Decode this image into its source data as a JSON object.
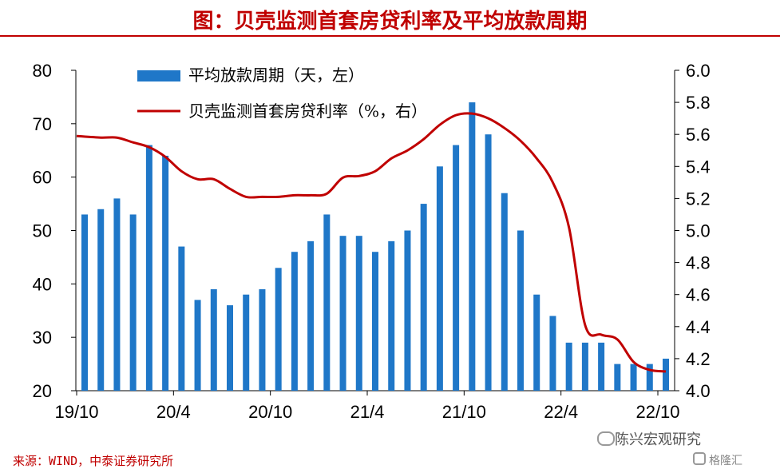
{
  "title": "图：贝壳监测首套房贷利率及平均放款周期",
  "source": "来源：WIND，中泰证券研究所",
  "watermark": "陈兴宏观研究",
  "watermark_logo": "格隆汇",
  "colors": {
    "bar": "#1f77c8",
    "line": "#c00000",
    "title": "#c00000",
    "axis": "#000000"
  },
  "chart_data": {
    "type": "bar",
    "x_tick_labels": [
      "19/10",
      "20/4",
      "20/10",
      "21/4",
      "21/10",
      "22/4",
      "22/10"
    ],
    "yaxis_left": {
      "min": 20,
      "max": 80,
      "ticks": [
        "80",
        "70",
        "60",
        "50",
        "40",
        "30",
        "20"
      ]
    },
    "yaxis_right": {
      "min": 4.0,
      "max": 6.0,
      "ticks": [
        "6.0",
        "5.8",
        "5.6",
        "5.4",
        "5.2",
        "5.0",
        "4.8",
        "4.6",
        "4.4",
        "4.2",
        "4.0"
      ]
    },
    "series": [
      {
        "name": "平均放款周期（天，左）",
        "type": "bar",
        "axis": "left",
        "values": [
          53,
          54,
          56,
          53,
          66,
          64,
          47,
          37,
          39,
          36,
          38,
          39,
          43,
          46,
          48,
          53,
          49,
          49,
          46,
          48,
          50,
          55,
          62,
          66,
          74,
          68,
          57,
          50,
          38,
          34,
          29,
          29,
          29,
          25,
          25,
          25,
          26
        ]
      },
      {
        "name": "贝壳监测首套房贷利率（%，右）",
        "type": "line",
        "axis": "right",
        "values": [
          5.59,
          5.58,
          5.58,
          5.55,
          5.52,
          5.46,
          5.37,
          5.32,
          5.32,
          5.26,
          5.21,
          5.21,
          5.21,
          5.22,
          5.22,
          5.23,
          5.33,
          5.34,
          5.37,
          5.45,
          5.5,
          5.57,
          5.66,
          5.72,
          5.73,
          5.7,
          5.64,
          5.56,
          5.45,
          5.3,
          5.02,
          4.41,
          4.35,
          4.32,
          4.18,
          4.13,
          4.12
        ]
      }
    ]
  }
}
